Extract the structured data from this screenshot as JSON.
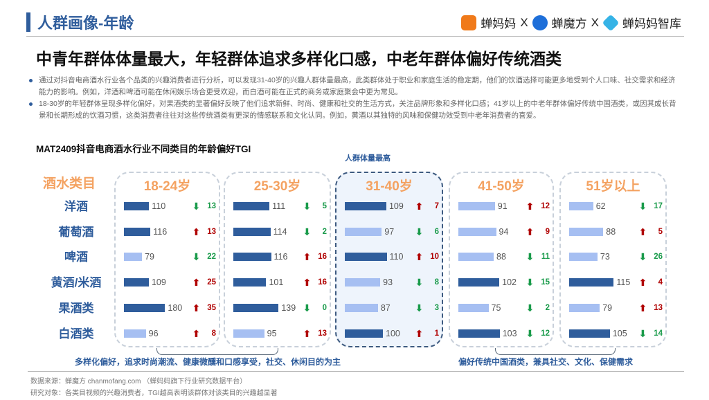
{
  "header": {
    "title": "人群画像-年龄",
    "logos": [
      "蝉妈妈",
      "X",
      "蝉魔方",
      "X",
      "蝉妈妈智库"
    ]
  },
  "headline": "中青年群体体量最大，年轻群体追求多样化口感，中老年群体偏好传统酒类",
  "bullets": [
    "通过对抖音电商酒水行业各个品类的兴趣消费者进行分析，可以发现31-40岁的兴趣人群体量最高，此类群体处于职业和家庭生活的稳定期，他们的饮酒选择可能更多地受到个人口味、社交需求和经济能力的影响。例如，洋酒和啤酒可能在休闲娱乐场合更受欢迎，而白酒可能在正式的商务或家庭聚会中更为常见。",
    "18-30岁的年轻群体呈现多样化偏好，对果酒类的显著偏好反映了他们追求新鲜、时尚、健康和社交的生活方式，关注品牌形象和多样化口感；41岁以上的中老年群体偏好传统中国酒类，或因其成长背景和长期形成的饮酒习惯，这类消费者往往对这些传统酒类有更深的情感联系和文化认同。例如，黄酒以其独特的风味和保健功效受到中老年消费者的喜爱。"
  ],
  "chart_data": {
    "type": "table",
    "title": "MAT2409抖音电商酒水行业不同类目的年龄偏好TGI",
    "category_header": "酒水类目",
    "categories": [
      "洋酒",
      "葡萄酒",
      "啤酒",
      "黄酒/米酒",
      "果酒类",
      "白酒类"
    ],
    "highlight_label": "人群体量最高",
    "groups": [
      {
        "name": "18-24岁",
        "tgi": [
          110,
          116,
          79,
          109,
          180,
          96
        ],
        "change": [
          {
            "d": "down",
            "v": 13
          },
          {
            "d": "up",
            "v": 13
          },
          {
            "d": "down",
            "v": 22
          },
          {
            "d": "up",
            "v": 25
          },
          {
            "d": "up",
            "v": 35
          },
          {
            "d": "up",
            "v": 8
          }
        ]
      },
      {
        "name": "25-30岁",
        "tgi": [
          111,
          114,
          116,
          101,
          139,
          95
        ],
        "change": [
          {
            "d": "down",
            "v": 5
          },
          {
            "d": "down",
            "v": 2
          },
          {
            "d": "up",
            "v": 16
          },
          {
            "d": "up",
            "v": 16
          },
          {
            "d": "down",
            "v": 0
          },
          {
            "d": "up",
            "v": 13
          }
        ]
      },
      {
        "name": "31-40岁",
        "tgi": [
          109,
          97,
          110,
          93,
          87,
          100
        ],
        "change": [
          {
            "d": "up",
            "v": 7
          },
          {
            "d": "down",
            "v": 6
          },
          {
            "d": "up",
            "v": 10
          },
          {
            "d": "down",
            "v": 8
          },
          {
            "d": "down",
            "v": 3
          },
          {
            "d": "up",
            "v": 1
          }
        ],
        "highlight": true
      },
      {
        "name": "41-50岁",
        "tgi": [
          91,
          94,
          88,
          102,
          75,
          103
        ],
        "change": [
          {
            "d": "up",
            "v": 12
          },
          {
            "d": "up",
            "v": 9
          },
          {
            "d": "down",
            "v": 11
          },
          {
            "d": "down",
            "v": 15
          },
          {
            "d": "down",
            "v": 2
          },
          {
            "d": "down",
            "v": 12
          }
        ]
      },
      {
        "name": "51岁以上",
        "tgi": [
          62,
          88,
          73,
          115,
          79,
          105
        ],
        "change": [
          {
            "d": "down",
            "v": 17
          },
          {
            "d": "up",
            "v": 5
          },
          {
            "d": "down",
            "v": 26
          },
          {
            "d": "up",
            "v": 4
          },
          {
            "d": "up",
            "v": 13
          },
          {
            "d": "down",
            "v": 14
          }
        ]
      }
    ],
    "colors": {
      "high": "#2f5d9c",
      "low": "#a6bff2",
      "up": "#b00000",
      "down": "#1a9b4b"
    }
  },
  "notes": {
    "young": "多样化偏好，追求时尚潮流、健康微醺和口感享受，社交、休闲目的为主",
    "old": "偏好传统中国酒类，兼具社交、文化、保健需求"
  },
  "footer": {
    "source": "数据来源：蝉魔方 chanmofang.com （蝉妈妈旗下行业研究数据平台）",
    "subject": "研究对象：各类目视频的兴趣消费者，TGI越高表明该群体对该类目的兴趣越显著"
  }
}
